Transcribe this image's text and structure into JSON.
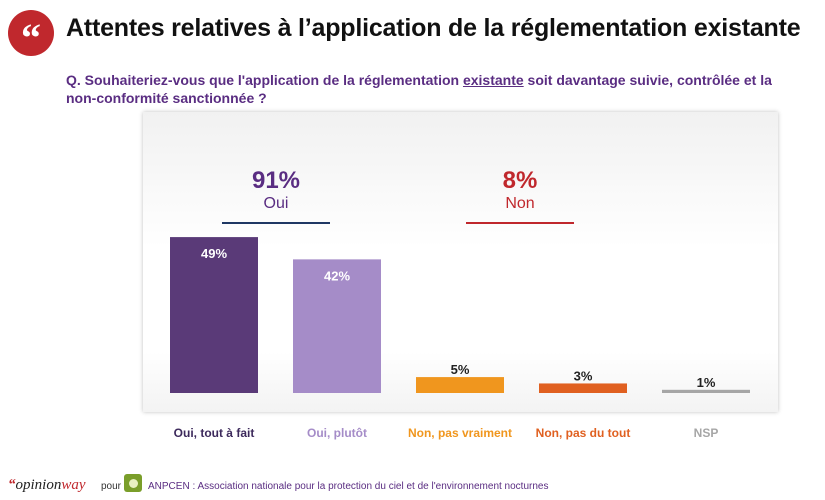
{
  "header": {
    "quote_glyph": "“",
    "title": "Attentes relatives à l’application de la réglementation existante"
  },
  "question": {
    "prefix": "Q. Souhaiteriez-vous que l'application de la réglementation ",
    "underlined": "existante",
    "suffix": " soit davantage suivie, contrôlée et la non-conformité sanctionnée ?"
  },
  "summary": {
    "yes": {
      "pct": "91%",
      "label": "Oui",
      "color": "#5a2d82",
      "line_color": "#1f3864"
    },
    "no": {
      "pct": "8%",
      "label": "Non",
      "color": "#c0282d",
      "line_color": "#c0282d"
    }
  },
  "chart_data": {
    "type": "bar",
    "categories": [
      "Oui, tout à fait",
      "Oui, plutôt",
      "Non, pas vraiment",
      "Non, pas du tout",
      "NSP"
    ],
    "values": [
      49,
      42,
      5,
      3,
      1
    ],
    "value_labels": [
      "49%",
      "42%",
      "5%",
      "3%",
      "1%"
    ],
    "colors": [
      "#5a3a78",
      "#a58cc8",
      "#f0961e",
      "#e06020",
      "#a6a6a6"
    ],
    "label_colors": [
      "#3d2a5c",
      "#a58cc8",
      "#f0961e",
      "#e06020",
      "#a6a6a6"
    ],
    "ylim": [
      0,
      55
    ],
    "grid": false
  },
  "footer": {
    "brand_quote": "“",
    "brand_opinion": "opinion",
    "brand_way": "way",
    "pour": "pour",
    "association": "ANPCEN : Association nationale pour la protection du ciel et de l'environnement nocturnes"
  }
}
